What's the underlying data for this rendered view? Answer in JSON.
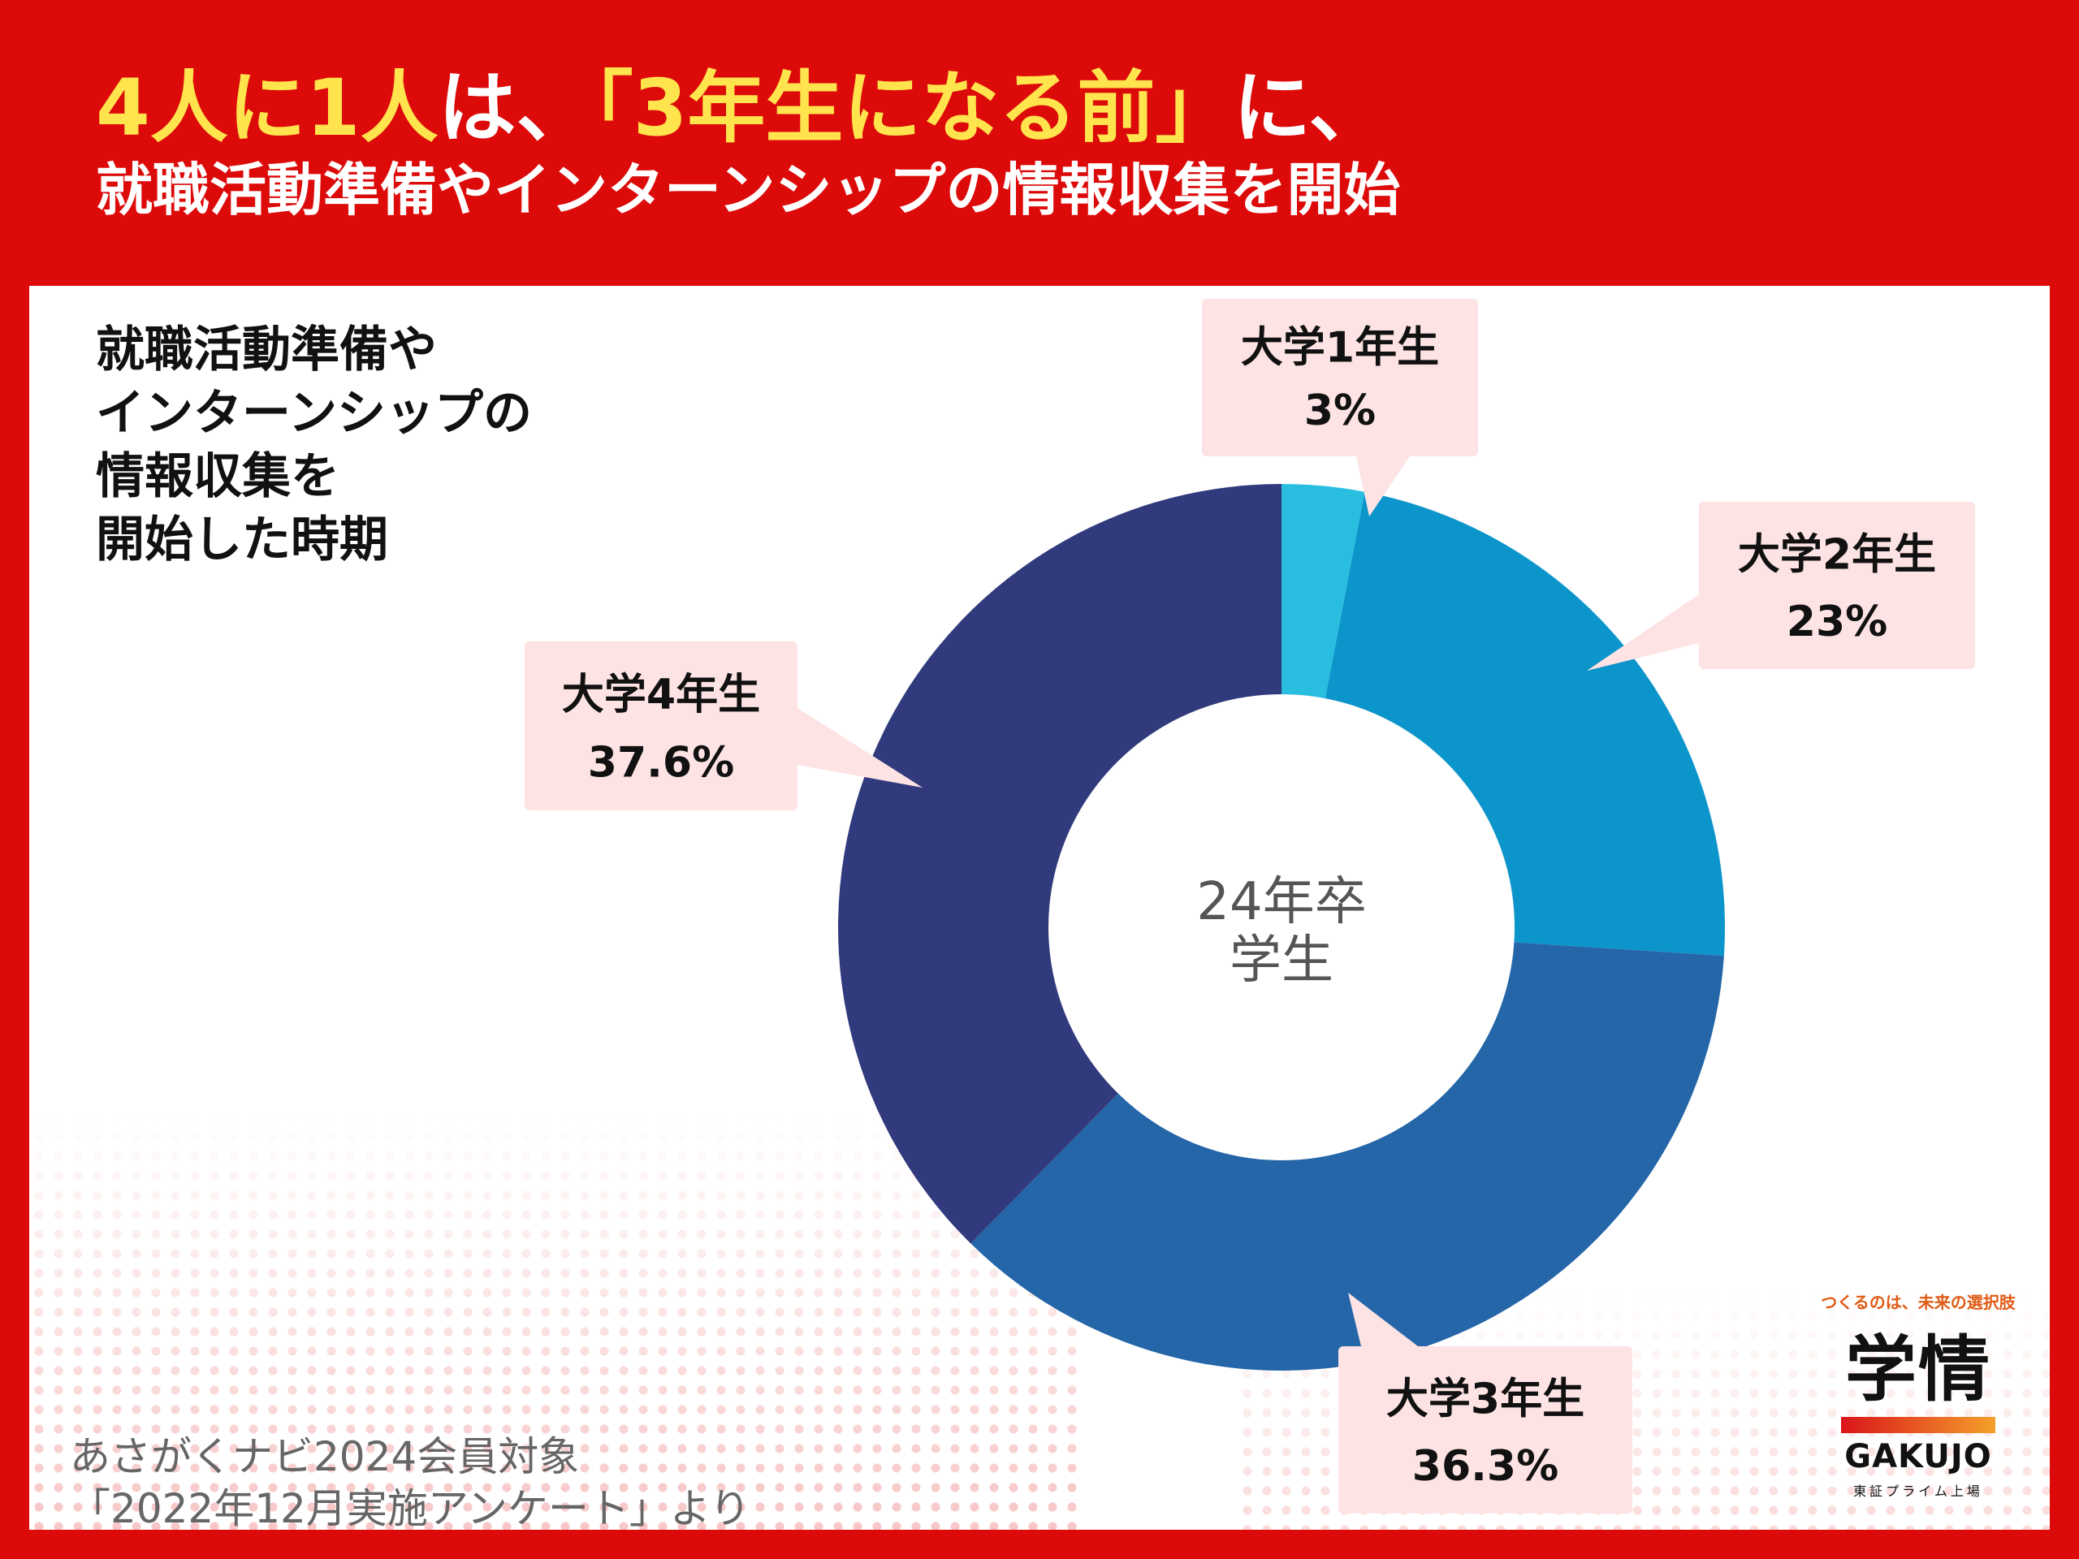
{
  "headline": {
    "line1_highlight_a": "4人に1人",
    "line1_plain_a": "は、",
    "line1_highlight_b": "「3年生になる前」",
    "line1_plain_b": "に、",
    "line2": "就職活動準備やインターンシップの情報収集を開始"
  },
  "chart_data": {
    "type": "pie",
    "donut": true,
    "title": "就職活動準備や\nインターンシップの\n情報収集を\n開始した時期",
    "center_label": [
      "24年卒",
      "学生"
    ],
    "categories": [
      "大学1年生",
      "大学2年生",
      "大学3年生",
      "大学4年生"
    ],
    "values": [
      3,
      23,
      36.3,
      37.6
    ],
    "value_labels": [
      "3%",
      "23%",
      "36.3%",
      "37.6%"
    ],
    "colors": [
      "#29bee0",
      "#0c95cb",
      "#2566a8",
      "#303a7c"
    ]
  },
  "source": {
    "line1": "あさがくナビ2024会員対象",
    "line2": "「2022年12月実施アンケート」より"
  },
  "logo": {
    "tagline": "つくるのは、未来の選択肢",
    "mark": "学情",
    "name": "GAKUJO",
    "subtitle": "東証プライム上場"
  }
}
